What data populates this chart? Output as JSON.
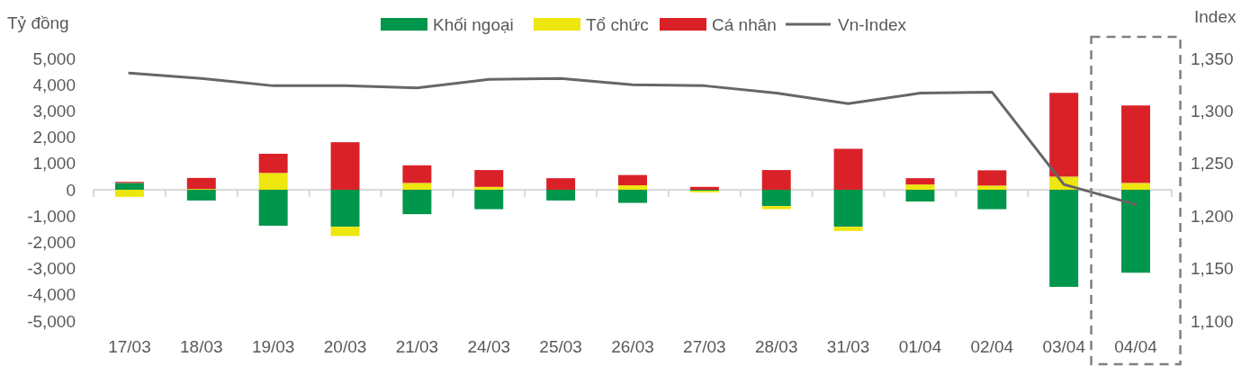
{
  "chart_data": {
    "type": "bar",
    "stacked": true,
    "ylabel": "Tỷ đồng",
    "y2label": "Index",
    "categories": [
      "17/03",
      "18/03",
      "19/03",
      "20/03",
      "21/03",
      "24/03",
      "25/03",
      "26/03",
      "27/03",
      "28/03",
      "31/03",
      "01/04",
      "02/04",
      "03/04",
      "04/04"
    ],
    "series": [
      {
        "name": "Khối ngoại",
        "color": "#00964b",
        "values": [
          260,
          -410,
          -1370,
          -1410,
          -930,
          -740,
          -410,
          -500,
          -40,
          -620,
          -1410,
          -450,
          -740,
          -3700,
          -3160
        ]
      },
      {
        "name": "Tổ chức",
        "color": "#ede60f",
        "values": [
          -270,
          30,
          640,
          -350,
          260,
          110,
          null,
          170,
          -60,
          -120,
          -160,
          200,
          160,
          500,
          260
        ]
      },
      {
        "name": "Cá nhân",
        "color": "#da2128",
        "values": [
          40,
          420,
          730,
          1810,
          670,
          640,
          440,
          390,
          110,
          750,
          1560,
          240,
          580,
          3190,
          2950
        ]
      },
      {
        "name": "Vn-Index",
        "type": "line",
        "axis": "y2",
        "color": "#666666",
        "values": [
          1336,
          1331,
          1324,
          1324,
          1322,
          1330,
          1331,
          1325,
          1324,
          1317,
          1307,
          1317,
          1318,
          1230,
          1211
        ]
      }
    ],
    "ylim": [
      -5000,
      5000
    ],
    "yticks": [
      {
        "value": -5000,
        "label": "-5,000"
      },
      {
        "value": -4000,
        "label": "-4,000"
      },
      {
        "value": -3000,
        "label": "-3,000"
      },
      {
        "value": -2000,
        "label": "-2,000"
      },
      {
        "value": -1000,
        "label": "-1,000"
      },
      0,
      {
        "value": 1000,
        "label": "1,000"
      },
      {
        "value": 2000,
        "label": "2,000"
      },
      {
        "value": 3000,
        "label": "3,000"
      },
      {
        "value": 4000,
        "label": "4,000"
      },
      {
        "value": 5000,
        "label": "5,000"
      }
    ],
    "y2lim": [
      1100,
      1350
    ],
    "y2ticks": [
      {
        "value": 1100,
        "label": "1,100"
      },
      {
        "value": 1150,
        "label": "1,150"
      },
      {
        "value": 1200,
        "label": "1,200"
      },
      {
        "value": 1250,
        "label": "1,250"
      },
      {
        "value": 1300,
        "label": "1,300"
      },
      {
        "value": 1350,
        "label": "1,350"
      }
    ],
    "legend": "top",
    "marker": "none",
    "line_style": "solid"
  }
}
